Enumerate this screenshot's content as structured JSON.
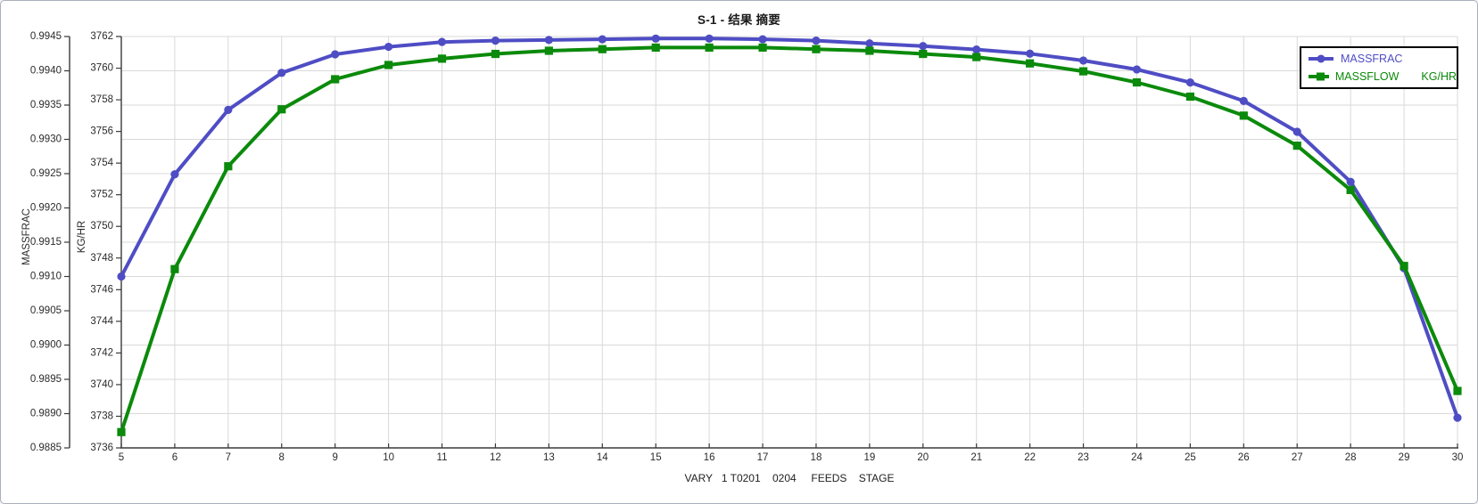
{
  "chart_data": {
    "type": "line",
    "title": "S-1 - 结果 摘要",
    "xlabel": "VARY   1 T0201    0204     FEEDS    STAGE",
    "x": [
      5,
      6,
      7,
      8,
      9,
      10,
      11,
      12,
      13,
      14,
      15,
      16,
      17,
      18,
      19,
      20,
      21,
      22,
      23,
      24,
      25,
      26,
      27,
      28,
      29,
      30
    ],
    "series": [
      {
        "name": "MASSFRAC",
        "axis": "left",
        "color": "#4f4dc4",
        "marker": "circle",
        "values": [
          0.991,
          0.99249,
          0.99343,
          0.99397,
          0.99424,
          0.99435,
          0.99442,
          0.99444,
          0.99445,
          0.99446,
          0.99447,
          0.99447,
          0.99446,
          0.99444,
          0.9944,
          0.99436,
          0.99431,
          0.99425,
          0.99415,
          0.99402,
          0.99383,
          0.99356,
          0.99311,
          0.99238,
          0.99112,
          0.98894
        ]
      },
      {
        "name": "MASSFLOW",
        "unit": "KG/HR",
        "axis": "right",
        "color": "#0b8a0b",
        "marker": "square",
        "values": [
          3737.0,
          3747.3,
          3753.8,
          3757.4,
          3759.3,
          3760.2,
          3760.6,
          3760.9,
          3761.1,
          3761.2,
          3761.3,
          3761.3,
          3761.3,
          3761.2,
          3761.1,
          3760.9,
          3760.7,
          3760.3,
          3759.8,
          3759.1,
          3758.2,
          3757.0,
          3755.1,
          3752.3,
          3747.5,
          3739.6
        ]
      }
    ],
    "axes": {
      "left": {
        "label": "MASSFRAC",
        "min": 0.9885,
        "max": 0.9945,
        "step": 0.0005,
        "tick_labels": [
          "0.9945",
          "0.9940",
          "0.9935",
          "0.9930",
          "0.9925",
          "0.9920",
          "0.9915",
          "0.9910",
          "0.9905",
          "0.9900",
          "0.9895",
          "0.9890",
          "0.9885"
        ]
      },
      "right": {
        "label": "KG/HR",
        "min": 3736,
        "max": 3762,
        "step": 2,
        "tick_labels": [
          "3762",
          "3760",
          "3758",
          "3756",
          "3754",
          "3752",
          "3750",
          "3748",
          "3746",
          "3744",
          "3742",
          "3740",
          "3738",
          "3736"
        ]
      },
      "x": {
        "min": 5,
        "max": 30,
        "step": 1,
        "tick_labels": [
          "5",
          "6",
          "7",
          "8",
          "9",
          "10",
          "11",
          "12",
          "13",
          "14",
          "15",
          "16",
          "17",
          "18",
          "19",
          "20",
          "21",
          "22",
          "23",
          "24",
          "25",
          "26",
          "27",
          "28",
          "29",
          "30"
        ]
      }
    },
    "legend": {
      "position": "top-right",
      "entries": [
        {
          "label": "MASSFRAC"
        },
        {
          "label": "MASSFLOW",
          "unit": "KG/HR"
        }
      ]
    },
    "grid": true,
    "style": {
      "grid_color": "#d9d9d9",
      "axis_color": "#3a3a3a",
      "text_color": "#2b2b2b",
      "background": "#ffffff"
    }
  }
}
